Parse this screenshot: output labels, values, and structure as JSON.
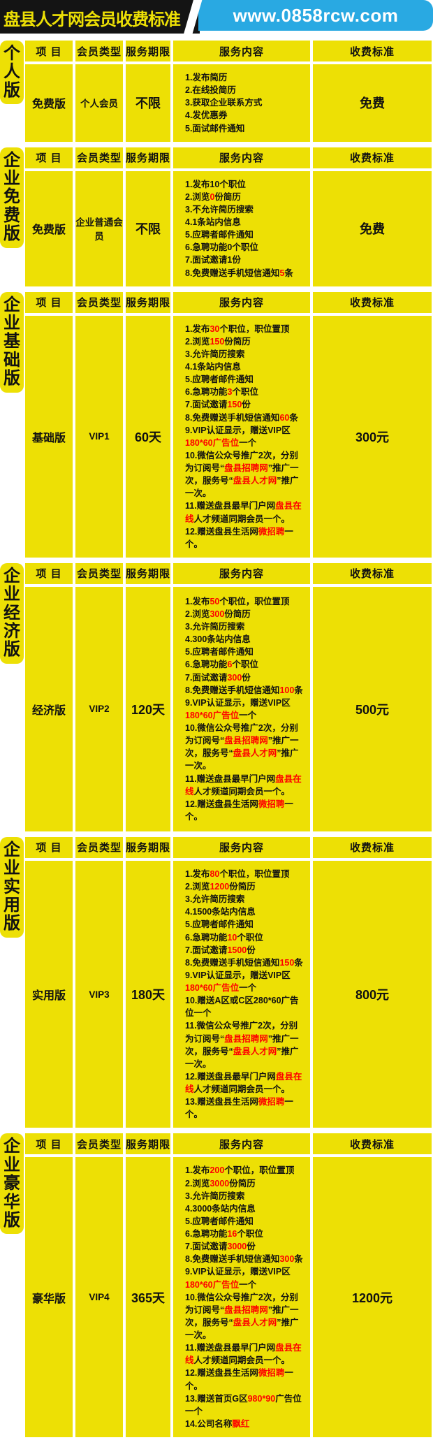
{
  "header": {
    "title": "盘县人才网会员收费标准",
    "url": "www.0858rcw.com"
  },
  "colors": {
    "cell_yellow": "#ede005",
    "banner_blue": "#29a9e2",
    "banner_black": "#141414",
    "accent_red": "#fe0000"
  },
  "table_headers": [
    "项 目",
    "会员类型",
    "服务期限",
    "服务内容",
    "收费标准"
  ],
  "sections": [
    {
      "side_label": "个人版",
      "item": "免费版",
      "member_type": "个人会员",
      "period": "不限",
      "price": "免费",
      "services": [
        "1.发布简历",
        "2.在线投简历",
        "3.获取企业联系方式",
        "4.发优惠券",
        "5.面试邮件通知"
      ]
    },
    {
      "side_label": "企业免费版",
      "item": "免费版",
      "member_type": "企业普通会员",
      "period": "不限",
      "price": "免费",
      "services": [
        "1.发布10个职位",
        "2.浏览{{0}}份简历",
        "3.不允许简历搜索",
        "4.1条站内信息",
        "5.应聘者邮件通知",
        "6.急聘功能0个职位",
        "7.面试邀请1份",
        "8.免费赠送手机短信通知{{5}}条"
      ]
    },
    {
      "side_label": "企业基础版",
      "item": "基础版",
      "member_type": "VIP1",
      "period": "60天",
      "price": "300元",
      "services": [
        "1.发布{{30}}个职位，职位置顶",
        "2.浏览{{150}}份简历",
        "3.允许简历搜索",
        "4.1条站内信息",
        "5.应聘者邮件通知",
        "6.急聘功能{{3}}个职位",
        "7.面试邀请{{150}}份",
        "8.免费赠送手机短信通知{{60}}条",
        "9.VIP认证显示，赠送VIP区{{180*60广告位}}一个",
        "10.微信公众号推广2次，分别为订阅号“{{盘县招聘网}}”推广一次，服务号“{{盘县人才网}}”推广一次。",
        "11.赠送盘县最早门户网{{盘县在线}}人才频道同期会员一个。",
        "12.赠送盘县生活网{{微招聘}}一个。"
      ]
    },
    {
      "side_label": "企业经济版",
      "item": "经济版",
      "member_type": "VIP2",
      "period": "120天",
      "price": "500元",
      "services": [
        "1.发布{{50}}个职位，职位置顶",
        "2.浏览{{300}}份简历",
        "3.允许简历搜索",
        "4.300条站内信息",
        "5.应聘者邮件通知",
        "6.急聘功能{{6}}个职位",
        "7.面试邀请{{300}}份",
        "8.免费赠送手机短信通知{{100}}条",
        "9.VIP认证显示，赠送VIP区{{180*60广告位}}一个",
        "10.微信公众号推广2次，分别为订阅号“{{盘县招聘网}}”推广一次，服务号“{{盘县人才网}}”推广一次。",
        "11.赠送盘县最早门户网{{盘县在线}}人才频道同期会员一个。",
        "12.赠送盘县生活网{{微招聘}}一个。"
      ]
    },
    {
      "side_label": "企业实用版",
      "item": "实用版",
      "member_type": "VIP3",
      "period": "180天",
      "price": "800元",
      "services": [
        "1.发布{{80}}个职位，职位置顶",
        "2.浏览{{1200}}份简历",
        "3.允许简历搜索",
        "4.1500条站内信息",
        "5.应聘者邮件通知",
        "6.急聘功能{{10}}个职位",
        "7.面试邀请{{1500}}份",
        "8.免费赠送手机短信通知{{150}}条",
        "9.VIP认证显示，赠送VIP区{{180*60广告位}}一个",
        "10.赠送A区或C区280*60广告位一个",
        "11.微信公众号推广2次，分别为订阅号“{{盘县招聘网}}”推广一次，服务号“{{盘县人才网}}”推广一次。",
        "12.赠送盘县最早门户网{{盘县在线}}人才频道同期会员一个。",
        "13.赠送盘县生活网{{微招聘}}一个。"
      ]
    },
    {
      "side_label": "企业豪华版",
      "item": "豪华版",
      "member_type": "VIP4",
      "period": "365天",
      "price": "1200元",
      "services": [
        "1.发布{{200}}个职位，职位置顶",
        "2.浏览{{3000}}份简历",
        "3.允许简历搜索",
        "4.3000条站内信息",
        "5.应聘者邮件通知",
        "6.急聘功能{{16}}个职位",
        "7.面试邀请{{3000}}份",
        "8.免费赠送手机短信通知{{300}}条",
        "9.VIP认证显示，赠送VIP区{{180*60广告位}}一个",
        "10.微信公众号推广2次，分别为订阅号“{{盘县招聘网}}”推广一次，服务号“{{盘县人才网}}”推广一次。",
        "11.赠送盘县最早门户网{{盘县在线}}人才频道同期会员一个。",
        "12.赠送盘县生活网{{微招聘}}一个。",
        "13.赠送首页G区{{980*90}}广告位一个",
        "14.公司名称{{飘红}}"
      ]
    }
  ]
}
